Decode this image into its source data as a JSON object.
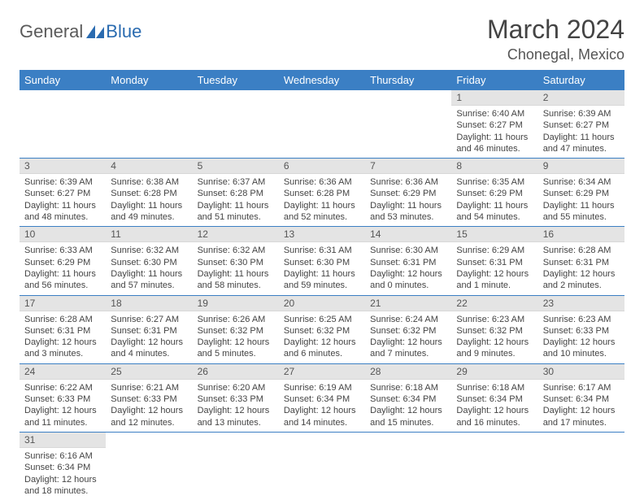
{
  "logo": {
    "part1": "General",
    "part2": "Blue"
  },
  "title": "March 2024",
  "location": "Chonegal, Mexico",
  "weekdays": [
    "Sunday",
    "Monday",
    "Tuesday",
    "Wednesday",
    "Thursday",
    "Friday",
    "Saturday"
  ],
  "colors": {
    "header_bg": "#3b7fc4",
    "header_text": "#ffffff",
    "daybar_bg": "#e4e4e4",
    "row_divider": "#3b7fc4",
    "logo_gray": "#5a5a5a",
    "logo_blue": "#2a6bb0"
  },
  "rows": [
    [
      null,
      null,
      null,
      null,
      null,
      {
        "n": "1",
        "sr": "Sunrise: 6:40 AM",
        "ss": "Sunset: 6:27 PM",
        "dl": "Daylight: 11 hours and 46 minutes."
      },
      {
        "n": "2",
        "sr": "Sunrise: 6:39 AM",
        "ss": "Sunset: 6:27 PM",
        "dl": "Daylight: 11 hours and 47 minutes."
      }
    ],
    [
      {
        "n": "3",
        "sr": "Sunrise: 6:39 AM",
        "ss": "Sunset: 6:27 PM",
        "dl": "Daylight: 11 hours and 48 minutes."
      },
      {
        "n": "4",
        "sr": "Sunrise: 6:38 AM",
        "ss": "Sunset: 6:28 PM",
        "dl": "Daylight: 11 hours and 49 minutes."
      },
      {
        "n": "5",
        "sr": "Sunrise: 6:37 AM",
        "ss": "Sunset: 6:28 PM",
        "dl": "Daylight: 11 hours and 51 minutes."
      },
      {
        "n": "6",
        "sr": "Sunrise: 6:36 AM",
        "ss": "Sunset: 6:28 PM",
        "dl": "Daylight: 11 hours and 52 minutes."
      },
      {
        "n": "7",
        "sr": "Sunrise: 6:36 AM",
        "ss": "Sunset: 6:29 PM",
        "dl": "Daylight: 11 hours and 53 minutes."
      },
      {
        "n": "8",
        "sr": "Sunrise: 6:35 AM",
        "ss": "Sunset: 6:29 PM",
        "dl": "Daylight: 11 hours and 54 minutes."
      },
      {
        "n": "9",
        "sr": "Sunrise: 6:34 AM",
        "ss": "Sunset: 6:29 PM",
        "dl": "Daylight: 11 hours and 55 minutes."
      }
    ],
    [
      {
        "n": "10",
        "sr": "Sunrise: 6:33 AM",
        "ss": "Sunset: 6:29 PM",
        "dl": "Daylight: 11 hours and 56 minutes."
      },
      {
        "n": "11",
        "sr": "Sunrise: 6:32 AM",
        "ss": "Sunset: 6:30 PM",
        "dl": "Daylight: 11 hours and 57 minutes."
      },
      {
        "n": "12",
        "sr": "Sunrise: 6:32 AM",
        "ss": "Sunset: 6:30 PM",
        "dl": "Daylight: 11 hours and 58 minutes."
      },
      {
        "n": "13",
        "sr": "Sunrise: 6:31 AM",
        "ss": "Sunset: 6:30 PM",
        "dl": "Daylight: 11 hours and 59 minutes."
      },
      {
        "n": "14",
        "sr": "Sunrise: 6:30 AM",
        "ss": "Sunset: 6:31 PM",
        "dl": "Daylight: 12 hours and 0 minutes."
      },
      {
        "n": "15",
        "sr": "Sunrise: 6:29 AM",
        "ss": "Sunset: 6:31 PM",
        "dl": "Daylight: 12 hours and 1 minute."
      },
      {
        "n": "16",
        "sr": "Sunrise: 6:28 AM",
        "ss": "Sunset: 6:31 PM",
        "dl": "Daylight: 12 hours and 2 minutes."
      }
    ],
    [
      {
        "n": "17",
        "sr": "Sunrise: 6:28 AM",
        "ss": "Sunset: 6:31 PM",
        "dl": "Daylight: 12 hours and 3 minutes."
      },
      {
        "n": "18",
        "sr": "Sunrise: 6:27 AM",
        "ss": "Sunset: 6:31 PM",
        "dl": "Daylight: 12 hours and 4 minutes."
      },
      {
        "n": "19",
        "sr": "Sunrise: 6:26 AM",
        "ss": "Sunset: 6:32 PM",
        "dl": "Daylight: 12 hours and 5 minutes."
      },
      {
        "n": "20",
        "sr": "Sunrise: 6:25 AM",
        "ss": "Sunset: 6:32 PM",
        "dl": "Daylight: 12 hours and 6 minutes."
      },
      {
        "n": "21",
        "sr": "Sunrise: 6:24 AM",
        "ss": "Sunset: 6:32 PM",
        "dl": "Daylight: 12 hours and 7 minutes."
      },
      {
        "n": "22",
        "sr": "Sunrise: 6:23 AM",
        "ss": "Sunset: 6:32 PM",
        "dl": "Daylight: 12 hours and 9 minutes."
      },
      {
        "n": "23",
        "sr": "Sunrise: 6:23 AM",
        "ss": "Sunset: 6:33 PM",
        "dl": "Daylight: 12 hours and 10 minutes."
      }
    ],
    [
      {
        "n": "24",
        "sr": "Sunrise: 6:22 AM",
        "ss": "Sunset: 6:33 PM",
        "dl": "Daylight: 12 hours and 11 minutes."
      },
      {
        "n": "25",
        "sr": "Sunrise: 6:21 AM",
        "ss": "Sunset: 6:33 PM",
        "dl": "Daylight: 12 hours and 12 minutes."
      },
      {
        "n": "26",
        "sr": "Sunrise: 6:20 AM",
        "ss": "Sunset: 6:33 PM",
        "dl": "Daylight: 12 hours and 13 minutes."
      },
      {
        "n": "27",
        "sr": "Sunrise: 6:19 AM",
        "ss": "Sunset: 6:34 PM",
        "dl": "Daylight: 12 hours and 14 minutes."
      },
      {
        "n": "28",
        "sr": "Sunrise: 6:18 AM",
        "ss": "Sunset: 6:34 PM",
        "dl": "Daylight: 12 hours and 15 minutes."
      },
      {
        "n": "29",
        "sr": "Sunrise: 6:18 AM",
        "ss": "Sunset: 6:34 PM",
        "dl": "Daylight: 12 hours and 16 minutes."
      },
      {
        "n": "30",
        "sr": "Sunrise: 6:17 AM",
        "ss": "Sunset: 6:34 PM",
        "dl": "Daylight: 12 hours and 17 minutes."
      }
    ],
    [
      {
        "n": "31",
        "sr": "Sunrise: 6:16 AM",
        "ss": "Sunset: 6:34 PM",
        "dl": "Daylight: 12 hours and 18 minutes."
      },
      null,
      null,
      null,
      null,
      null,
      null
    ]
  ]
}
